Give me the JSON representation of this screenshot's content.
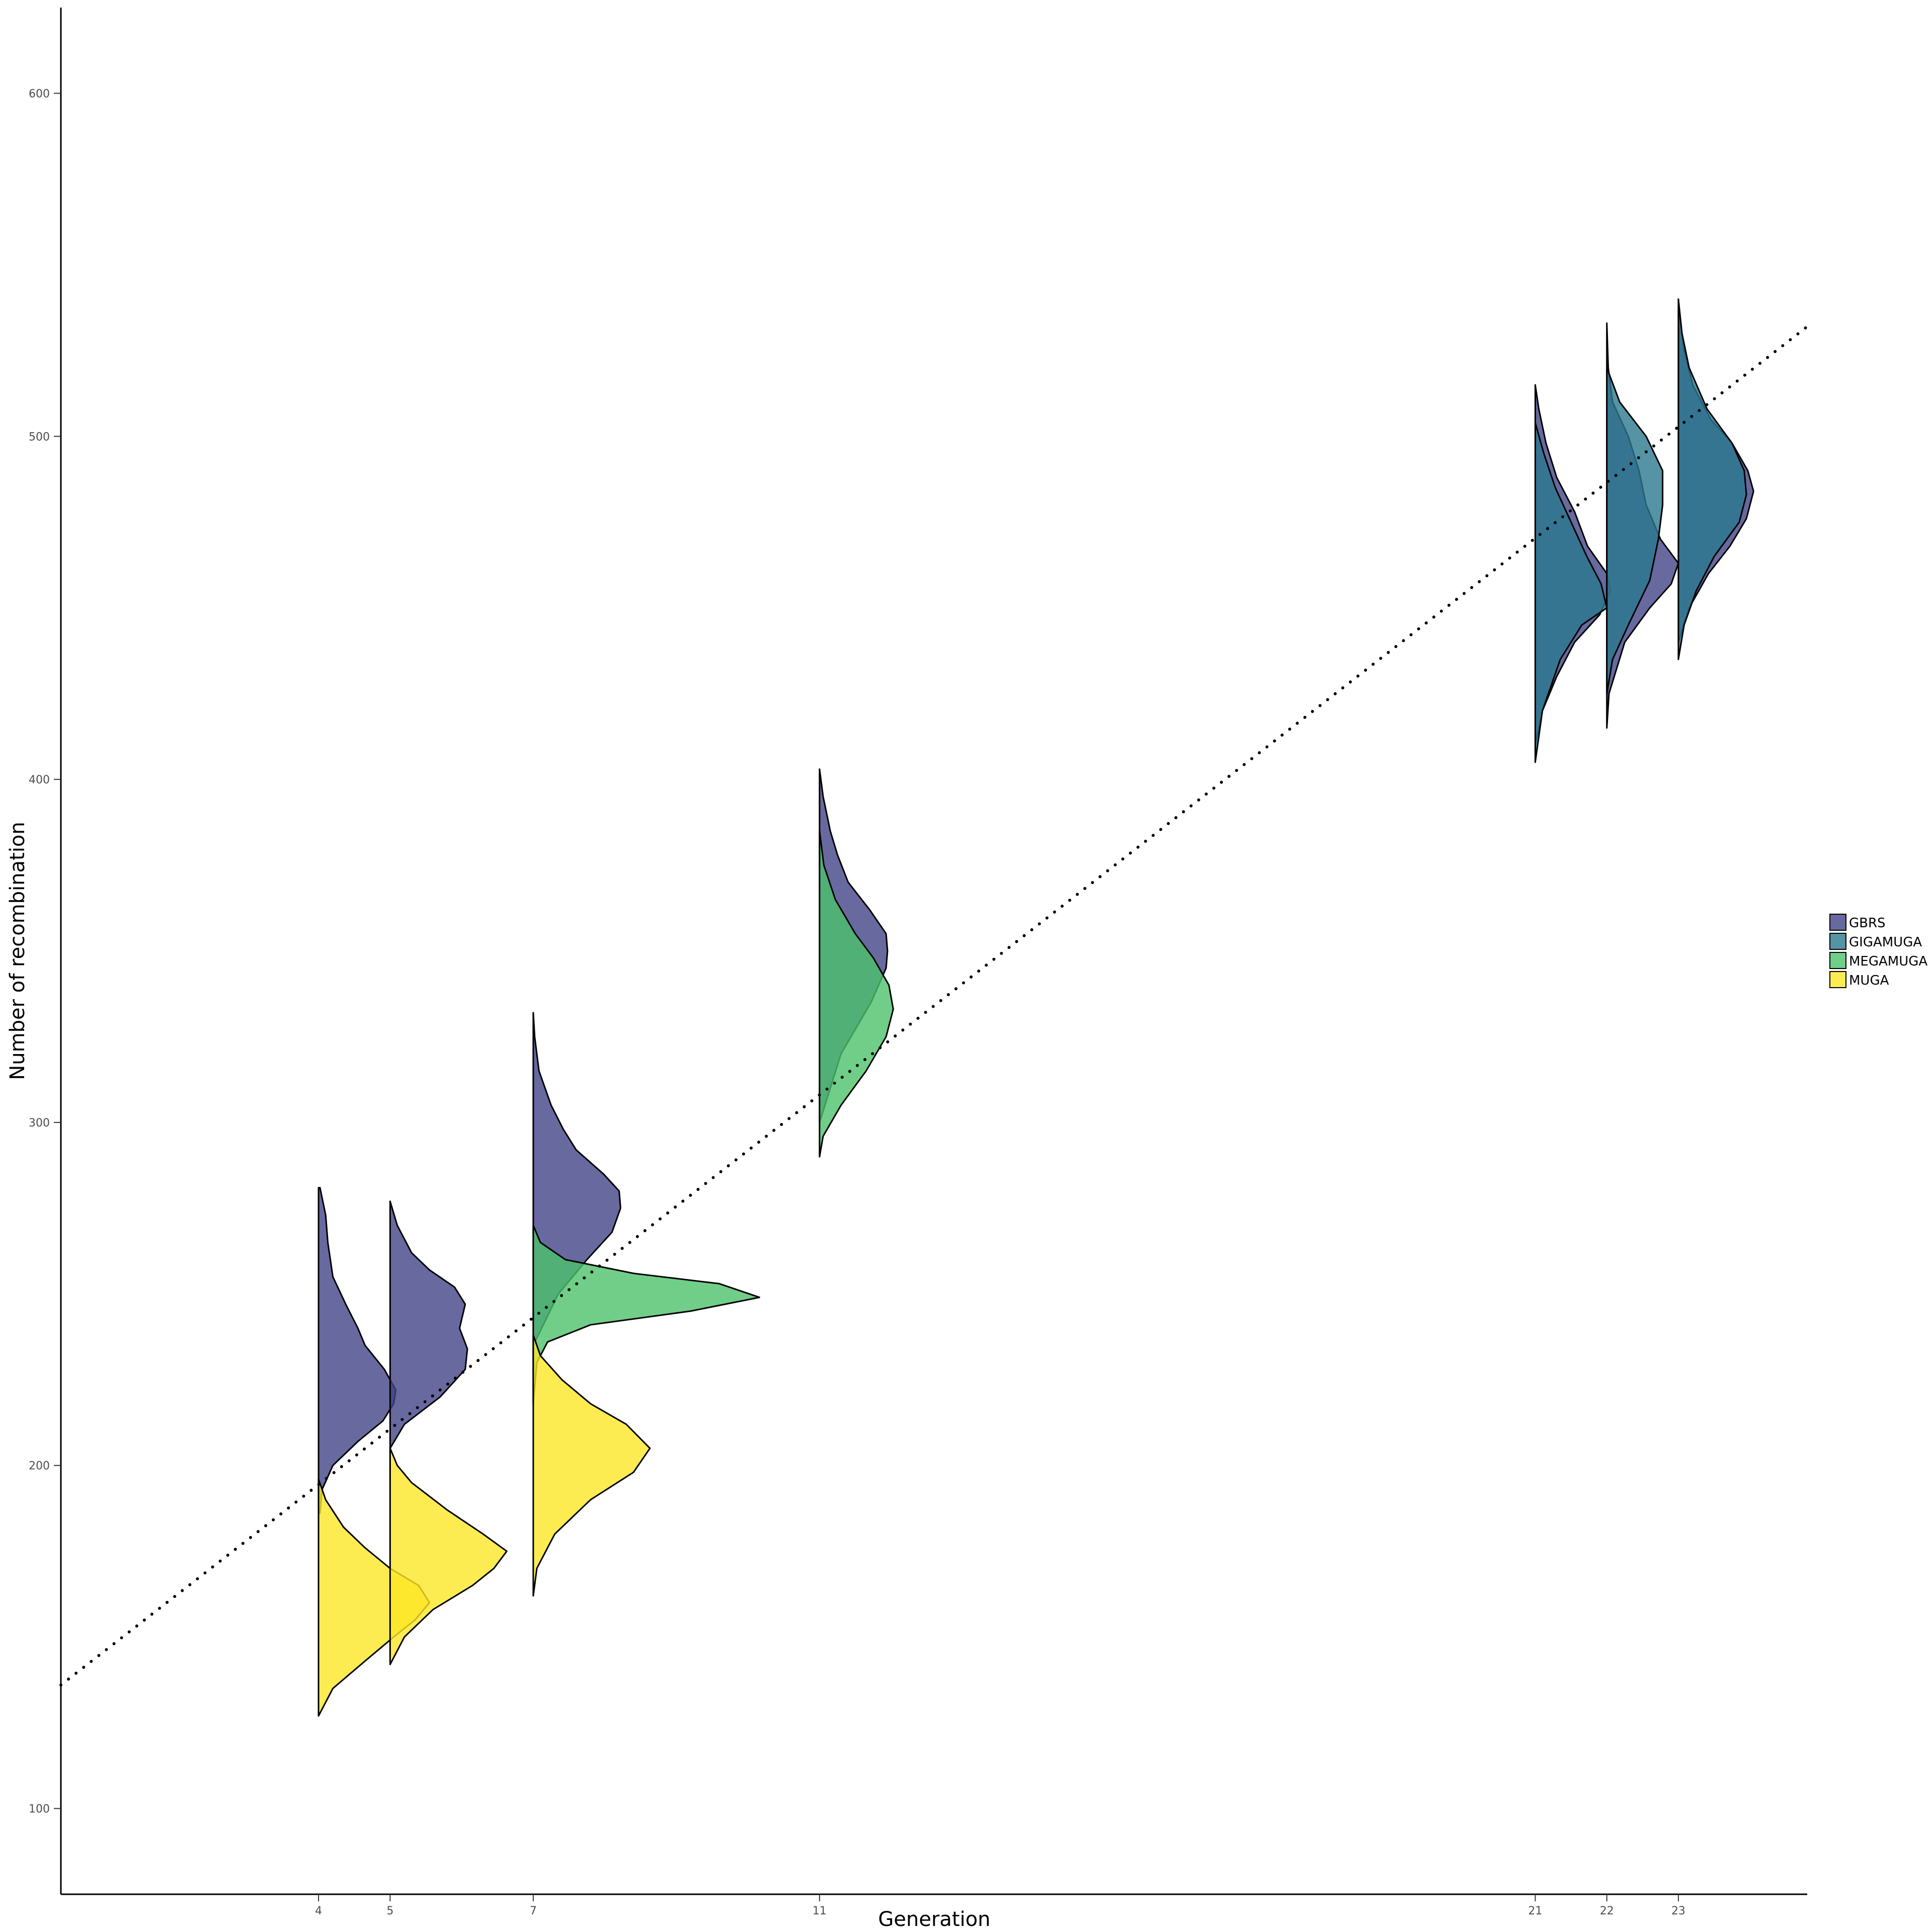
{
  "chart_data": {
    "type": "violin",
    "xlabel": "Generation",
    "ylabel": "Number of recombination",
    "xlim": [
      0.4,
      24.8
    ],
    "ylim": [
      75,
      625
    ],
    "x_ticks": [
      4,
      5,
      7,
      11,
      21,
      22,
      23
    ],
    "y_ticks": [
      100,
      200,
      300,
      400,
      500,
      600
    ],
    "grid": false,
    "legend_position": "right",
    "legend": [
      "GBRS",
      "GIGAMUGA",
      "MEGAMUGA",
      "MUGA"
    ],
    "colors": {
      "GBRS": "#414487",
      "GIGAMUGA": "#2A788E",
      "MEGAMUGA": "#4CC26C",
      "MUGA": "#FDE725"
    },
    "trend_line": {
      "style": "dotted",
      "x": [
        0.4,
        24.8
      ],
      "y": [
        136,
        532
      ]
    },
    "series": [
      {
        "name": "GBRS",
        "generation": 4,
        "min": 186,
        "max": 281,
        "max_width": 1.08,
        "profile": [
          [
            186,
            0.02
          ],
          [
            193,
            0.05
          ],
          [
            200,
            0.2
          ],
          [
            207,
            0.55
          ],
          [
            213,
            0.9
          ],
          [
            218,
            1.05
          ],
          [
            222,
            1.08
          ],
          [
            228,
            0.92
          ],
          [
            235,
            0.65
          ],
          [
            240,
            0.55
          ],
          [
            247,
            0.38
          ],
          [
            255,
            0.2
          ],
          [
            265,
            0.13
          ],
          [
            273,
            0.1
          ],
          [
            281,
            0.02
          ]
        ]
      },
      {
        "name": "MUGA",
        "generation": 4,
        "min": 127,
        "max": 196,
        "max_width": 1.55,
        "profile": [
          [
            127,
            0.0
          ],
          [
            135,
            0.2
          ],
          [
            143,
            0.65
          ],
          [
            150,
            1.05
          ],
          [
            155,
            1.35
          ],
          [
            160,
            1.55
          ],
          [
            165,
            1.4
          ],
          [
            170,
            1.0
          ],
          [
            176,
            0.65
          ],
          [
            182,
            0.35
          ],
          [
            190,
            0.1
          ],
          [
            196,
            0.0
          ]
        ]
      },
      {
        "name": "GBRS",
        "generation": 5,
        "min": 196,
        "max": 277,
        "max_width": 1.08,
        "profile": [
          [
            196,
            0.0
          ],
          [
            205,
            0.0
          ],
          [
            212,
            0.2
          ],
          [
            220,
            0.7
          ],
          [
            228,
            1.05
          ],
          [
            234,
            1.08
          ],
          [
            240,
            0.97
          ],
          [
            247,
            1.05
          ],
          [
            252,
            0.9
          ],
          [
            257,
            0.55
          ],
          [
            262,
            0.3
          ],
          [
            270,
            0.1
          ],
          [
            277,
            0.0
          ]
        ]
      },
      {
        "name": "MUGA",
        "generation": 5,
        "min": 142,
        "max": 205,
        "max_width": 1.63,
        "profile": [
          [
            142,
            0.0
          ],
          [
            150,
            0.2
          ],
          [
            158,
            0.6
          ],
          [
            165,
            1.15
          ],
          [
            170,
            1.45
          ],
          [
            175,
            1.63
          ],
          [
            180,
            1.3
          ],
          [
            187,
            0.8
          ],
          [
            195,
            0.3
          ],
          [
            200,
            0.1
          ],
          [
            205,
            0.0
          ]
        ]
      },
      {
        "name": "GBRS",
        "generation": 7,
        "min": 218,
        "max": 332,
        "max_width": 1.23,
        "profile": [
          [
            218,
            0.0
          ],
          [
            235,
            0.0
          ],
          [
            250,
            0.35
          ],
          [
            260,
            0.75
          ],
          [
            268,
            1.1
          ],
          [
            275,
            1.22
          ],
          [
            280,
            1.2
          ],
          [
            285,
            0.98
          ],
          [
            292,
            0.6
          ],
          [
            298,
            0.42
          ],
          [
            305,
            0.25
          ],
          [
            315,
            0.08
          ],
          [
            325,
            0.02
          ],
          [
            332,
            0.0
          ]
        ]
      },
      {
        "name": "MEGAMUGA",
        "generation": 7,
        "min": 218,
        "max": 270,
        "max_width": 3.16,
        "profile": [
          [
            218,
            0.0
          ],
          [
            230,
            0.05
          ],
          [
            236,
            0.2
          ],
          [
            241,
            0.8
          ],
          [
            245,
            2.2
          ],
          [
            249,
            3.16
          ],
          [
            253,
            2.6
          ],
          [
            256,
            1.4
          ],
          [
            260,
            0.45
          ],
          [
            265,
            0.1
          ],
          [
            270,
            0.0
          ]
        ]
      },
      {
        "name": "MUGA",
        "generation": 7,
        "min": 162,
        "max": 238,
        "max_width": 1.63,
        "profile": [
          [
            162,
            0.0
          ],
          [
            170,
            0.05
          ],
          [
            180,
            0.3
          ],
          [
            190,
            0.8
          ],
          [
            198,
            1.4
          ],
          [
            205,
            1.63
          ],
          [
            212,
            1.3
          ],
          [
            218,
            0.8
          ],
          [
            225,
            0.4
          ],
          [
            232,
            0.1
          ],
          [
            238,
            0.0
          ]
        ]
      },
      {
        "name": "GBRS",
        "generation": 11,
        "min": 300,
        "max": 403,
        "max_width": 0.95,
        "profile": [
          [
            300,
            0.0
          ],
          [
            320,
            0.3
          ],
          [
            335,
            0.72
          ],
          [
            345,
            0.93
          ],
          [
            350,
            0.95
          ],
          [
            355,
            0.93
          ],
          [
            362,
            0.7
          ],
          [
            370,
            0.4
          ],
          [
            378,
            0.25
          ],
          [
            385,
            0.15
          ],
          [
            395,
            0.05
          ],
          [
            403,
            0.0
          ]
        ]
      },
      {
        "name": "MEGAMUGA",
        "generation": 11,
        "min": 290,
        "max": 385,
        "max_width": 1.03,
        "profile": [
          [
            290,
            0.0
          ],
          [
            296,
            0.05
          ],
          [
            305,
            0.3
          ],
          [
            315,
            0.65
          ],
          [
            325,
            0.93
          ],
          [
            333,
            1.03
          ],
          [
            340,
            0.97
          ],
          [
            348,
            0.75
          ],
          [
            355,
            0.5
          ],
          [
            365,
            0.22
          ],
          [
            375,
            0.06
          ],
          [
            385,
            0.0
          ]
        ]
      },
      {
        "name": "GBRS",
        "generation": 21,
        "min": 410,
        "max": 515,
        "max_width": 1.05,
        "profile": [
          [
            410,
            0.0
          ],
          [
            420,
            0.1
          ],
          [
            430,
            0.3
          ],
          [
            440,
            0.55
          ],
          [
            448,
            0.9
          ],
          [
            455,
            1.05
          ],
          [
            460,
            1.0
          ],
          [
            468,
            0.73
          ],
          [
            478,
            0.55
          ],
          [
            488,
            0.3
          ],
          [
            498,
            0.15
          ],
          [
            508,
            0.05
          ],
          [
            515,
            0.0
          ]
        ]
      },
      {
        "name": "GIGAMUGA",
        "generation": 21,
        "min": 405,
        "max": 504,
        "max_width": 1.0,
        "profile": [
          [
            405,
            0.0
          ],
          [
            420,
            0.1
          ],
          [
            435,
            0.35
          ],
          [
            445,
            0.65
          ],
          [
            450,
            1.0
          ],
          [
            457,
            0.92
          ],
          [
            465,
            0.72
          ],
          [
            475,
            0.5
          ],
          [
            485,
            0.28
          ],
          [
            495,
            0.12
          ],
          [
            504,
            0.0
          ]
        ]
      },
      {
        "name": "GBRS",
        "generation": 22,
        "min": 415,
        "max": 533,
        "max_width": 1.0,
        "profile": [
          [
            415,
            0.0
          ],
          [
            425,
            0.03
          ],
          [
            440,
            0.25
          ],
          [
            450,
            0.6
          ],
          [
            457,
            0.9
          ],
          [
            463,
            1.0
          ],
          [
            470,
            0.75
          ],
          [
            480,
            0.55
          ],
          [
            490,
            0.45
          ],
          [
            500,
            0.3
          ],
          [
            510,
            0.08
          ],
          [
            520,
            0.02
          ],
          [
            533,
            0.0
          ]
        ]
      },
      {
        "name": "GIGAMUGA",
        "generation": 22,
        "min": 425,
        "max": 520,
        "max_width": 0.82,
        "profile": [
          [
            425,
            0.0
          ],
          [
            435,
            0.08
          ],
          [
            445,
            0.3
          ],
          [
            458,
            0.6
          ],
          [
            470,
            0.72
          ],
          [
            480,
            0.78
          ],
          [
            490,
            0.78
          ],
          [
            500,
            0.55
          ],
          [
            510,
            0.18
          ],
          [
            520,
            0.0
          ]
        ]
      },
      {
        "name": "GBRS",
        "generation": 23,
        "min": 440,
        "max": 538,
        "max_width": 1.05,
        "profile": [
          [
            440,
            0.0
          ],
          [
            450,
            0.15
          ],
          [
            460,
            0.42
          ],
          [
            468,
            0.72
          ],
          [
            476,
            0.95
          ],
          [
            484,
            1.05
          ],
          [
            490,
            0.97
          ],
          [
            498,
            0.75
          ],
          [
            505,
            0.45
          ],
          [
            515,
            0.2
          ],
          [
            525,
            0.08
          ],
          [
            538,
            0.0
          ]
        ]
      },
      {
        "name": "GIGAMUGA",
        "generation": 23,
        "min": 435,
        "max": 540,
        "max_width": 0.95,
        "profile": [
          [
            435,
            0.0
          ],
          [
            445,
            0.08
          ],
          [
            455,
            0.25
          ],
          [
            465,
            0.5
          ],
          [
            475,
            0.85
          ],
          [
            483,
            0.95
          ],
          [
            490,
            0.92
          ],
          [
            498,
            0.75
          ],
          [
            508,
            0.4
          ],
          [
            520,
            0.15
          ],
          [
            530,
            0.05
          ],
          [
            540,
            0.0
          ]
        ]
      }
    ]
  }
}
